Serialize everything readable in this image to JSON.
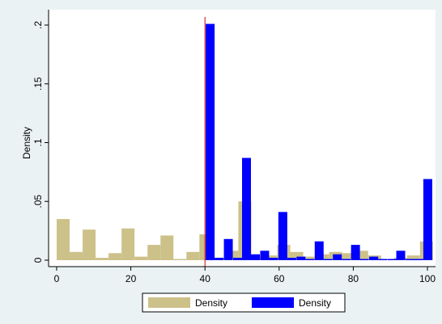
{
  "chart_data": {
    "type": "bar",
    "ylabel": "Density",
    "xlabel": "",
    "xlim": [
      -2,
      102
    ],
    "ylim": [
      0,
      0.2
    ],
    "x_ticks": [
      {
        "value": 0,
        "label": "0"
      },
      {
        "value": 20,
        "label": "20"
      },
      {
        "value": 40,
        "label": "40"
      },
      {
        "value": 60,
        "label": "60"
      },
      {
        "value": 80,
        "label": "80"
      },
      {
        "value": 100,
        "label": "100"
      }
    ],
    "y_ticks": [
      {
        "value": 0,
        "label": "0"
      },
      {
        "value": 0.05,
        "label": ".05"
      },
      {
        "value": 0.1,
        "label": ".1"
      },
      {
        "value": 0.15,
        "label": ".15"
      },
      {
        "value": 0.2,
        "label": ".2"
      }
    ],
    "reference_line": {
      "x": 40,
      "color": "#cc0000"
    },
    "grid": false,
    "legend_position": "bottom",
    "series": [
      {
        "name": "Density",
        "color": "#cdc18a",
        "bar_width": 3.5,
        "bars": [
          {
            "x": 0,
            "y": 0.035
          },
          {
            "x": 3.5,
            "y": 0.007
          },
          {
            "x": 7,
            "y": 0.026
          },
          {
            "x": 10.5,
            "y": 0.002
          },
          {
            "x": 14,
            "y": 0.006
          },
          {
            "x": 17.5,
            "y": 0.027
          },
          {
            "x": 21,
            "y": 0.003
          },
          {
            "x": 24.5,
            "y": 0.013
          },
          {
            "x": 28,
            "y": 0.021
          },
          {
            "x": 31.5,
            "y": 0.001
          },
          {
            "x": 35,
            "y": 0.007
          },
          {
            "x": 38.5,
            "y": 0.022
          },
          {
            "x": 42,
            "y": 0.002
          },
          {
            "x": 45.5,
            "y": 0.008
          },
          {
            "x": 49,
            "y": 0.05
          },
          {
            "x": 52.5,
            "y": 0.004
          },
          {
            "x": 56,
            "y": 0.004
          },
          {
            "x": 59.5,
            "y": 0.013
          },
          {
            "x": 63,
            "y": 0.007
          },
          {
            "x": 66.5,
            "y": 0.003
          },
          {
            "x": 70,
            "y": 0.005
          },
          {
            "x": 73.5,
            "y": 0.007
          },
          {
            "x": 77,
            "y": 0.006
          },
          {
            "x": 80.5,
            "y": 0.008
          },
          {
            "x": 84,
            "y": 0.004
          },
          {
            "x": 87.5,
            "y": 0.001
          },
          {
            "x": 91,
            "y": 0.002
          },
          {
            "x": 94.5,
            "y": 0.004
          },
          {
            "x": 98,
            "y": 0.016
          }
        ]
      },
      {
        "name": "Density",
        "color": "#0000ff",
        "bar_width": 2.4,
        "bars": [
          {
            "x": 40.2,
            "y": 0.201
          },
          {
            "x": 42.6,
            "y": 0.002
          },
          {
            "x": 45.1,
            "y": 0.018
          },
          {
            "x": 47.6,
            "y": 0.002
          },
          {
            "x": 50,
            "y": 0.087
          },
          {
            "x": 52.4,
            "y": 0.005
          },
          {
            "x": 54.9,
            "y": 0.008
          },
          {
            "x": 57.3,
            "y": 0.002
          },
          {
            "x": 59.8,
            "y": 0.041
          },
          {
            "x": 62.2,
            "y": 0.002
          },
          {
            "x": 64.7,
            "y": 0.003
          },
          {
            "x": 67.1,
            "y": 0.001
          },
          {
            "x": 69.6,
            "y": 0.016
          },
          {
            "x": 72,
            "y": 0.001
          },
          {
            "x": 74.5,
            "y": 0.005
          },
          {
            "x": 76.9,
            "y": 0.001
          },
          {
            "x": 79.4,
            "y": 0.013
          },
          {
            "x": 81.8,
            "y": 0.001
          },
          {
            "x": 84.3,
            "y": 0.003
          },
          {
            "x": 86.7,
            "y": 0.001
          },
          {
            "x": 89.2,
            "y": 0.001
          },
          {
            "x": 91.6,
            "y": 0.008
          },
          {
            "x": 94.1,
            "y": 0.001
          },
          {
            "x": 96.5,
            "y": 0.001
          },
          {
            "x": 98.9,
            "y": 0.069
          }
        ]
      }
    ]
  }
}
